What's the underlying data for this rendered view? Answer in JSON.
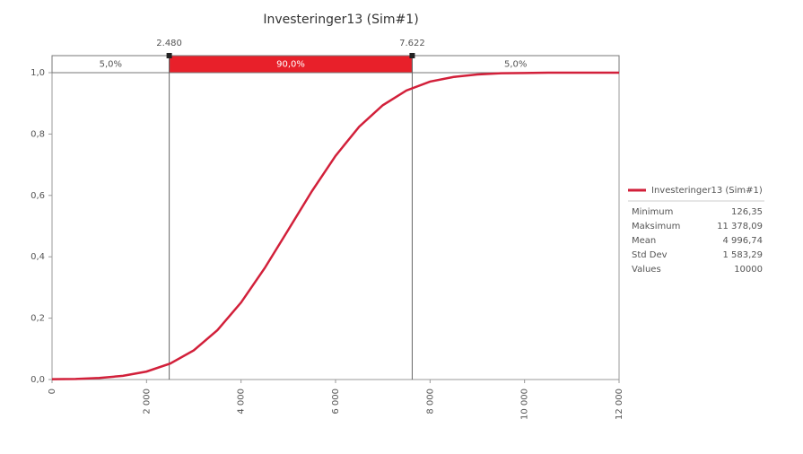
{
  "chart_data": {
    "type": "line",
    "title": "Investeringer13 (Sim#1)",
    "xlim": [
      0,
      12000
    ],
    "ylim": [
      0,
      1
    ],
    "xticks": [
      0,
      {
        "value": 2000,
        "label": "2 000"
      },
      {
        "value": 4000,
        "label": "4 000"
      },
      {
        "value": 6000,
        "label": "6 000"
      },
      {
        "value": 8000,
        "label": "8 000"
      },
      {
        "value": 10000,
        "label": "10 000"
      },
      {
        "value": 12000,
        "label": "12 000"
      }
    ],
    "yticks": [
      {
        "value": 0,
        "label": "0,0"
      },
      {
        "value": 0.2,
        "label": "0,2"
      },
      {
        "value": 0.4,
        "label": "0,4"
      },
      {
        "value": 0.6,
        "label": "0,6"
      },
      {
        "value": 0.8,
        "label": "0,8"
      },
      {
        "value": 1,
        "label": "1,0"
      }
    ],
    "delimiters": [
      {
        "value": 2480,
        "label": "2.480"
      },
      {
        "value": 7622,
        "label": "7.622"
      }
    ],
    "bands": {
      "values": [
        5,
        90,
        5
      ],
      "value_labels": [
        "5,0%",
        "90,0%",
        "5,0%"
      ],
      "colors": [
        "#ffffff",
        "#e8202a",
        "#ffffff"
      ]
    },
    "series": [
      {
        "name": "Investeringer13 (Sim#1)",
        "color": "#d2203a",
        "x": [
          0,
          500,
          1000,
          1500,
          2000,
          2500,
          3000,
          3500,
          4000,
          4500,
          5000,
          5500,
          6000,
          6500,
          7000,
          7500,
          8000,
          8500,
          9000,
          9500,
          10000,
          10500,
          11000,
          11500,
          12000
        ],
        "values": [
          0.001,
          0.002,
          0.005,
          0.012,
          0.026,
          0.052,
          0.095,
          0.161,
          0.251,
          0.363,
          0.488,
          0.614,
          0.729,
          0.824,
          0.894,
          0.942,
          0.971,
          0.986,
          0.994,
          0.998,
          0.999,
          1,
          1,
          1,
          1
        ]
      }
    ],
    "stats": [
      {
        "label": "Minimum",
        "value": "126,35"
      },
      {
        "label": "Maksimum",
        "value": "11 378,09"
      },
      {
        "label": "Mean",
        "value": "4 996,74"
      },
      {
        "label": "Std Dev",
        "value": "1 583,29"
      },
      {
        "label": "Values",
        "value": "10000"
      }
    ]
  }
}
